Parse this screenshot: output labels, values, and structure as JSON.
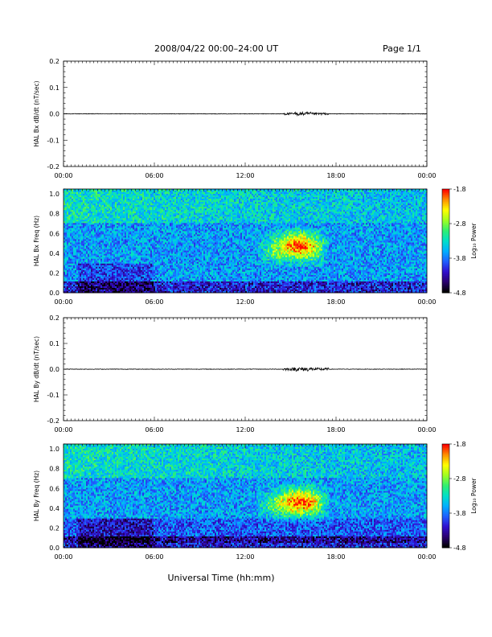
{
  "header": {
    "title": "2008/04/22  00:00–24:00 UT",
    "page_label": "Page 1/1"
  },
  "xaxis": {
    "label": "Universal Time (hh:mm)",
    "ticks": [
      "00:00",
      "06:00",
      "12:00",
      "18:00",
      "00:00"
    ],
    "range_hours": [
      0,
      24
    ]
  },
  "colors": {
    "trace": "#000000",
    "palette": [
      "#000000",
      "#2a0070",
      "#3010d0",
      "#2060ff",
      "#00b0ff",
      "#00e0c8",
      "#30f070",
      "#a0ff20",
      "#ffff00",
      "#ff9000",
      "#ff0000"
    ]
  },
  "chart_data": [
    {
      "type": "line",
      "ylabel": "HAL Bx dB/dt (nT/sec)",
      "ylim": [
        -0.2,
        0.2
      ],
      "yticks": [
        "0.2",
        "0.1",
        "0.0",
        "-0.1",
        "-0.2"
      ],
      "baseline": 0.0,
      "activity": [
        {
          "start_h": 0,
          "end_h": 14.5,
          "amplitude": 0.001
        },
        {
          "start_h": 14.5,
          "end_h": 17.5,
          "amplitude": 0.004
        },
        {
          "start_h": 17.5,
          "end_h": 24,
          "amplitude": 0.001
        }
      ]
    },
    {
      "type": "heatmap",
      "ylabel": "HAL Bx Freq (Hz)",
      "ylim": [
        0,
        1.05
      ],
      "yticks": [
        "1.0",
        "0.8",
        "0.6",
        "0.4",
        "0.2",
        "0.0"
      ],
      "colorbar_label": "Log₁₀ Power",
      "color_range": [
        -4.8,
        -1.8
      ],
      "colorbar_ticks": [
        "-1.8",
        "-2.8",
        "-3.8",
        "-4.8"
      ],
      "features": [
        {
          "desc": "Pc1 band",
          "start_h": 12.5,
          "end_h": 17.5,
          "freq_low": 0.3,
          "freq_high": 0.65,
          "peak_h": 15.5,
          "peak_freq": 0.5,
          "peak_log_power": -2.0
        }
      ]
    },
    {
      "type": "line",
      "ylabel": "HAL By dB/dt (nT/sec)",
      "ylim": [
        -0.2,
        0.2
      ],
      "yticks": [
        "0.2",
        "0.1",
        "0.0",
        "-0.1",
        "-0.2"
      ],
      "baseline": 0.0,
      "activity": [
        {
          "start_h": 0,
          "end_h": 14.5,
          "amplitude": 0.001
        },
        {
          "start_h": 14.5,
          "end_h": 17.5,
          "amplitude": 0.005
        },
        {
          "start_h": 17.5,
          "end_h": 24,
          "amplitude": 0.001
        }
      ]
    },
    {
      "type": "heatmap",
      "ylabel": "HAL By Freq (Hz)",
      "ylim": [
        0,
        1.05
      ],
      "yticks": [
        "1.0",
        "0.8",
        "0.6",
        "0.4",
        "0.2",
        "0.0"
      ],
      "colorbar_label": "Log₁₀ Power",
      "color_range": [
        -4.8,
        -1.8
      ],
      "colorbar_ticks": [
        "-1.8",
        "-2.8",
        "-3.8",
        "-4.8"
      ],
      "features": [
        {
          "desc": "Pc1 band",
          "start_h": 12.5,
          "end_h": 17.5,
          "freq_low": 0.3,
          "freq_high": 0.65,
          "peak_h": 15.6,
          "peak_freq": 0.48,
          "peak_log_power": -1.9
        }
      ]
    }
  ]
}
